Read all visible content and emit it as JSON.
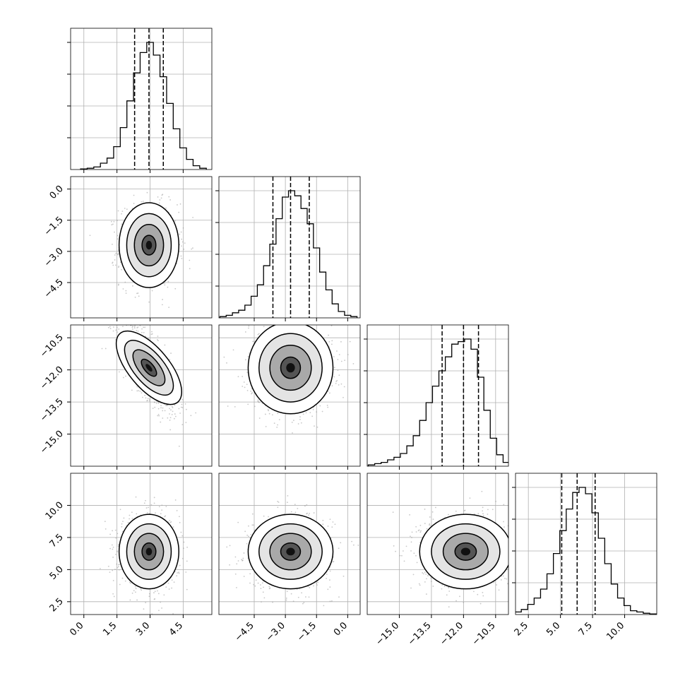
{
  "chart_data": {
    "type": "corner",
    "grid": true,
    "n_params": 4,
    "params": [
      {
        "xticks": [
          "0.0",
          "1.5",
          "3.0",
          "4.5"
        ],
        "xtick_values": [
          0.0,
          1.5,
          3.0,
          4.5
        ],
        "range": [
          -0.6,
          5.8
        ],
        "quantiles": [
          2.3,
          2.95,
          3.6
        ],
        "hist_centers": [
          0.0,
          0.3,
          0.6,
          0.9,
          1.2,
          1.5,
          1.8,
          2.1,
          2.4,
          2.7,
          3.0,
          3.3,
          3.6,
          3.9,
          4.2,
          4.5,
          4.8,
          5.1,
          5.4
        ],
        "hist_values": [
          0.005,
          0.01,
          0.02,
          0.05,
          0.09,
          0.18,
          0.33,
          0.54,
          0.76,
          0.92,
          1.0,
          0.9,
          0.73,
          0.52,
          0.32,
          0.17,
          0.08,
          0.03,
          0.01
        ]
      },
      {
        "xticks": [
          "−4.5",
          "−3.0",
          "−1.5",
          "0.0"
        ],
        "xtick_values": [
          -4.5,
          -3.0,
          -1.5,
          0.0
        ],
        "range": [
          -6.2,
          0.6
        ],
        "quantiles": [
          -3.6,
          -2.75,
          -1.85
        ],
        "hist_centers": [
          -6.0,
          -5.7,
          -5.4,
          -5.1,
          -4.8,
          -4.5,
          -4.2,
          -3.9,
          -3.6,
          -3.3,
          -3.0,
          -2.7,
          -2.4,
          -2.1,
          -1.8,
          -1.5,
          -1.2,
          -0.9,
          -0.6,
          -0.3,
          0.0,
          0.3
        ],
        "hist_values": [
          0.01,
          0.02,
          0.04,
          0.06,
          0.1,
          0.17,
          0.26,
          0.41,
          0.58,
          0.78,
          0.95,
          1.0,
          0.96,
          0.86,
          0.74,
          0.55,
          0.36,
          0.22,
          0.11,
          0.05,
          0.02,
          0.01
        ]
      },
      {
        "xticks": [
          "−15.0",
          "−13.5",
          "−12.0",
          "−10.5"
        ],
        "xtick_values": [
          -15.0,
          -13.5,
          -12.0,
          -10.5
        ],
        "range": [
          -16.5,
          -9.9
        ],
        "quantiles": [
          -13.0,
          -12.0,
          -11.3
        ],
        "hist_centers": [
          -16.3,
          -16.0,
          -15.7,
          -15.4,
          -15.1,
          -14.8,
          -14.5,
          -14.2,
          -13.9,
          -13.6,
          -13.3,
          -13.0,
          -12.7,
          -12.4,
          -12.1,
          -11.8,
          -11.5,
          -11.2,
          -10.9,
          -10.6,
          -10.3,
          -10.0
        ],
        "hist_values": [
          0.01,
          0.02,
          0.03,
          0.05,
          0.07,
          0.1,
          0.16,
          0.24,
          0.36,
          0.5,
          0.63,
          0.75,
          0.86,
          0.96,
          0.98,
          1.0,
          0.92,
          0.7,
          0.44,
          0.22,
          0.09,
          0.03
        ]
      },
      {
        "xticks": [
          "2.5",
          "5.0",
          "7.5",
          "10.0"
        ],
        "xtick_values": [
          2.5,
          5.0,
          7.5,
          10.0
        ],
        "range": [
          1.5,
          12.5
        ],
        "quantiles": [
          5.1,
          6.3,
          7.7
        ],
        "hist_centers": [
          1.7,
          2.2,
          2.7,
          3.2,
          3.7,
          4.2,
          4.7,
          5.2,
          5.7,
          6.2,
          6.7,
          7.2,
          7.7,
          8.2,
          8.7,
          9.2,
          9.7,
          10.2,
          10.7,
          11.2,
          11.7,
          12.2
        ],
        "hist_values": [
          0.02,
          0.04,
          0.08,
          0.13,
          0.2,
          0.32,
          0.48,
          0.66,
          0.83,
          0.96,
          1.0,
          0.95,
          0.8,
          0.6,
          0.4,
          0.24,
          0.13,
          0.07,
          0.03,
          0.02,
          0.01,
          0.005
        ]
      }
    ],
    "yticks": {
      "1": [
        "0.0",
        "−1.5",
        "−3.0",
        "−4.5"
      ],
      "2": [
        "−10.5",
        "−12.0",
        "−13.5",
        "−15.0"
      ],
      "3": [
        "10.0",
        "7.5",
        "5.0",
        "2.5"
      ]
    },
    "pairs": [
      {
        "row": 1,
        "col": 0,
        "mean_x": 2.95,
        "mean_y": -2.7,
        "sd_x": 0.63,
        "sd_y": 0.95,
        "rho": 0.0
      },
      {
        "row": 2,
        "col": 0,
        "mean_x": 2.95,
        "mean_y": -11.9,
        "sd_x": 0.63,
        "sd_y": 1.0,
        "rho": -0.72
      },
      {
        "row": 2,
        "col": 1,
        "mean_x": -2.75,
        "mean_y": -11.9,
        "sd_x": 0.95,
        "sd_y": 1.0,
        "rho": 0.0
      },
      {
        "row": 3,
        "col": 0,
        "mean_x": 2.95,
        "mean_y": 6.4,
        "sd_x": 0.63,
        "sd_y": 1.35,
        "rho": 0.0
      },
      {
        "row": 3,
        "col": 1,
        "mean_x": -2.75,
        "mean_y": 6.4,
        "sd_x": 0.95,
        "sd_y": 1.35,
        "rho": 0.0
      },
      {
        "row": 3,
        "col": 2,
        "mean_x": -11.9,
        "mean_y": 6.4,
        "sd_x": 1.0,
        "sd_y": 1.35,
        "rho": 0.0
      }
    ],
    "colors": {
      "line": "#000000",
      "grid": "#b0b0b0",
      "points": "#9a9a9a",
      "fill": "#000000"
    }
  }
}
